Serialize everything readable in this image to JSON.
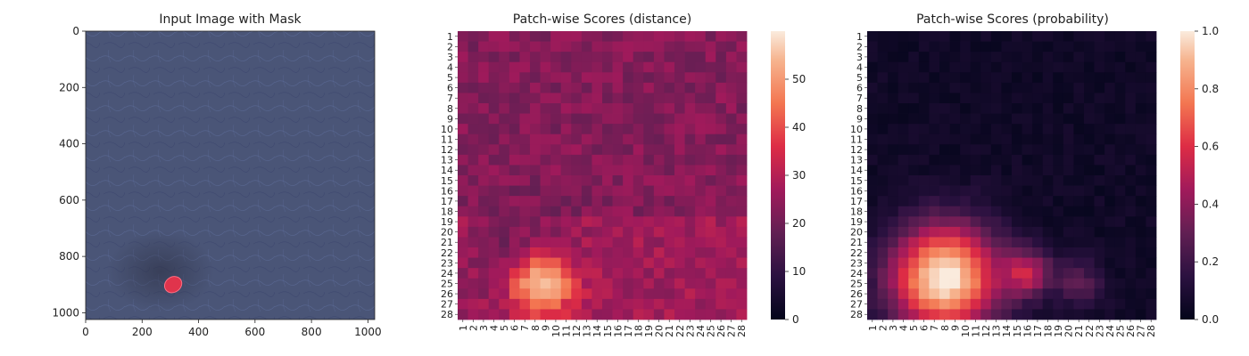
{
  "chart_data": [
    {
      "type": "image",
      "title": "Input Image with Mask",
      "x_ticks": [
        "0",
        "200",
        "400",
        "600",
        "800",
        "1000"
      ],
      "y_ticks": [
        "0",
        "200",
        "400",
        "600",
        "800",
        "1000"
      ],
      "xlim": [
        0,
        1024
      ],
      "ylim": [
        1024,
        0
      ],
      "background_color": "#4a5577",
      "mask": {
        "x": 310,
        "y": 900,
        "rx": 32,
        "ry": 27,
        "color": "#e0344c"
      }
    },
    {
      "type": "heatmap",
      "title": "Patch-wise Scores (distance)",
      "rows": 28,
      "cols": 28,
      "labels": [
        "1",
        "2",
        "3",
        "4",
        "5",
        "6",
        "7",
        "8",
        "9",
        "10",
        "11",
        "12",
        "13",
        "14",
        "15",
        "16",
        "17",
        "18",
        "19",
        "20",
        "21",
        "22",
        "23",
        "24",
        "25",
        "26",
        "27",
        "28"
      ],
      "vmin": 0,
      "vmax": 60,
      "colorbar_ticks": [
        "0",
        "10",
        "20",
        "30",
        "40",
        "50"
      ],
      "colormap": "rocket",
      "base_value": 23,
      "hotspots": [
        {
          "row": 25,
          "col": 8.5,
          "peak": 59,
          "radius": 2.2
        },
        {
          "row": 23,
          "col": 7,
          "peak": 12,
          "radius": 3.0
        }
      ]
    },
    {
      "type": "heatmap",
      "title": "Patch-wise Scores (probability)",
      "rows": 28,
      "cols": 28,
      "labels": [
        "1",
        "2",
        "3",
        "4",
        "5",
        "6",
        "7",
        "8",
        "9",
        "10",
        "11",
        "12",
        "13",
        "14",
        "15",
        "16",
        "17",
        "18",
        "19",
        "20",
        "21",
        "22",
        "23",
        "24",
        "25",
        "26",
        "27",
        "28"
      ],
      "vmin": 0,
      "vmax": 1,
      "colorbar_ticks": [
        "0.0",
        "0.2",
        "0.4",
        "0.6",
        "0.8",
        "1.0"
      ],
      "colormap": "rocket",
      "base_value": 0.02,
      "hotspots": [
        {
          "row": 24.5,
          "col": 8,
          "peak": 1.0,
          "radius": 3.6
        },
        {
          "row": 24,
          "col": 16,
          "peak": 0.45,
          "radius": 1.6
        },
        {
          "row": 25,
          "col": 21,
          "peak": 0.25,
          "radius": 1.6
        }
      ]
    }
  ]
}
